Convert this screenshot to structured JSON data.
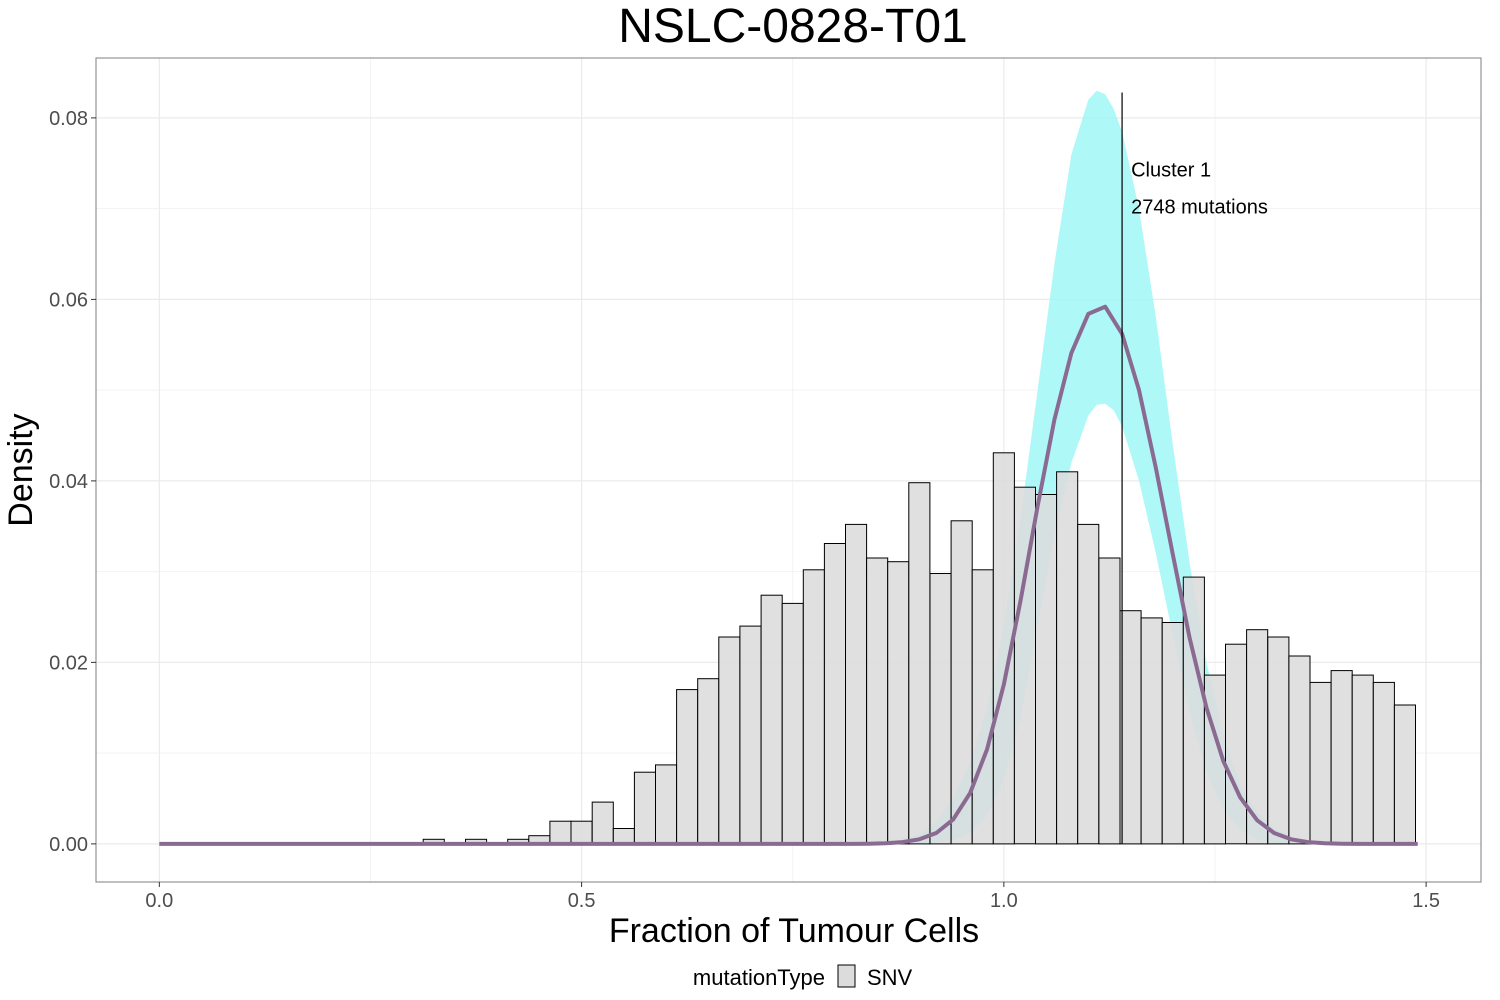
{
  "chart_data": {
    "type": "bar",
    "title": "NSLC-0828-T01",
    "xlabel": "Fraction of Tumour Cells",
    "ylabel": "Density",
    "xlim": [
      -0.075,
      1.565
    ],
    "ylim": [
      -0.0042,
      0.0866
    ],
    "x_ticks": [
      "0.0",
      "0.5",
      "1.0",
      "1.5"
    ],
    "y_ticks": [
      "0.00",
      "0.02",
      "0.04",
      "0.06",
      "0.08"
    ],
    "grid": true,
    "legend_position": "bottom",
    "legend": {
      "title": "mutationType",
      "entries": [
        "SNV"
      ]
    },
    "histogram": {
      "bin_width": 0.025,
      "bins": [
        {
          "x_start": 0.3125,
          "value": 0.0005
        },
        {
          "x_start": 0.3375,
          "value": 0.0
        },
        {
          "x_start": 0.3625,
          "value": 0.0005
        },
        {
          "x_start": 0.3875,
          "value": 0.0
        },
        {
          "x_start": 0.4125,
          "value": 0.0005
        },
        {
          "x_start": 0.4375,
          "value": 0.0009
        },
        {
          "x_start": 0.4625,
          "value": 0.0025
        },
        {
          "x_start": 0.4875,
          "value": 0.0025
        },
        {
          "x_start": 0.5125,
          "value": 0.0046
        },
        {
          "x_start": 0.5375,
          "value": 0.0017
        },
        {
          "x_start": 0.5625,
          "value": 0.0079
        },
        {
          "x_start": 0.5875,
          "value": 0.0087
        },
        {
          "x_start": 0.6125,
          "value": 0.017
        },
        {
          "x_start": 0.6375,
          "value": 0.0182
        },
        {
          "x_start": 0.6625,
          "value": 0.0228
        },
        {
          "x_start": 0.6875,
          "value": 0.024
        },
        {
          "x_start": 0.7125,
          "value": 0.0274
        },
        {
          "x_start": 0.7375,
          "value": 0.0265
        },
        {
          "x_start": 0.7625,
          "value": 0.0302
        },
        {
          "x_start": 0.7875,
          "value": 0.0331
        },
        {
          "x_start": 0.8125,
          "value": 0.0352
        },
        {
          "x_start": 0.8375,
          "value": 0.0315
        },
        {
          "x_start": 0.8625,
          "value": 0.0311
        },
        {
          "x_start": 0.8875,
          "value": 0.0398
        },
        {
          "x_start": 0.9125,
          "value": 0.0298
        },
        {
          "x_start": 0.9375,
          "value": 0.0356
        },
        {
          "x_start": 0.9625,
          "value": 0.0302
        },
        {
          "x_start": 0.9875,
          "value": 0.0431
        },
        {
          "x_start": 1.0125,
          "value": 0.0393
        },
        {
          "x_start": 1.0375,
          "value": 0.0385
        },
        {
          "x_start": 1.0625,
          "value": 0.041
        },
        {
          "x_start": 1.0875,
          "value": 0.0352
        },
        {
          "x_start": 1.1125,
          "value": 0.0315
        },
        {
          "x_start": 1.1375,
          "value": 0.0257
        },
        {
          "x_start": 1.1625,
          "value": 0.0249
        },
        {
          "x_start": 1.1875,
          "value": 0.0244
        },
        {
          "x_start": 1.2125,
          "value": 0.0294
        },
        {
          "x_start": 1.2375,
          "value": 0.0186
        },
        {
          "x_start": 1.2625,
          "value": 0.022
        },
        {
          "x_start": 1.2875,
          "value": 0.0236
        },
        {
          "x_start": 1.3125,
          "value": 0.0228
        },
        {
          "x_start": 1.3375,
          "value": 0.0207
        },
        {
          "x_start": 1.3625,
          "value": 0.0178
        },
        {
          "x_start": 1.3875,
          "value": 0.0191
        },
        {
          "x_start": 1.4125,
          "value": 0.0186
        },
        {
          "x_start": 1.4375,
          "value": 0.0178
        },
        {
          "x_start": 1.4625,
          "value": 0.0153
        }
      ]
    },
    "density_curve": {
      "x": [
        0.0,
        0.8,
        0.82,
        0.84,
        0.86,
        0.88,
        0.9,
        0.92,
        0.94,
        0.96,
        0.98,
        1.0,
        1.02,
        1.04,
        1.06,
        1.08,
        1.1,
        1.12,
        1.14,
        1.16,
        1.18,
        1.2,
        1.22,
        1.24,
        1.26,
        1.28,
        1.3,
        1.32,
        1.34,
        1.36,
        1.38,
        1.4,
        1.42,
        1.44,
        1.46,
        1.49
      ],
      "y": [
        0.0,
        0.0,
        0.0,
        2e-05,
        7e-05,
        0.0002,
        0.0005,
        0.0012,
        0.0027,
        0.0056,
        0.0104,
        0.0176,
        0.0269,
        0.0372,
        0.0468,
        0.0541,
        0.0584,
        0.0592,
        0.0562,
        0.05,
        0.0414,
        0.0319,
        0.0227,
        0.015,
        0.0091,
        0.0051,
        0.0026,
        0.0012,
        0.0005,
        0.0002,
        7e-05,
        2e-05,
        0.0,
        0.0,
        0.0,
        0.0
      ],
      "color": "#8b6a91"
    },
    "confidence_band": {
      "x": [
        0.86,
        0.9,
        0.92,
        0.94,
        0.96,
        0.98,
        1.0,
        1.02,
        1.04,
        1.06,
        1.08,
        1.1,
        1.11,
        1.12,
        1.13,
        1.14,
        1.16,
        1.18,
        1.2,
        1.22,
        1.24,
        1.26,
        1.28,
        1.3,
        1.32,
        1.34,
        1.36,
        1.38,
        1.4,
        1.43
      ],
      "lower": [
        0.0,
        0.0,
        0.0001,
        0.0004,
        0.0012,
        0.0031,
        0.0071,
        0.014,
        0.024,
        0.034,
        0.042,
        0.0472,
        0.0484,
        0.0485,
        0.0478,
        0.046,
        0.04,
        0.032,
        0.023,
        0.0145,
        0.008,
        0.0038,
        0.0015,
        0.0005,
        0.0001,
        0.0,
        0.0,
        0.0,
        0.0,
        0.0
      ],
      "upper": [
        0.0,
        0.001,
        0.0025,
        0.005,
        0.009,
        0.015,
        0.024,
        0.036,
        0.05,
        0.064,
        0.076,
        0.082,
        0.083,
        0.0826,
        0.081,
        0.0785,
        0.07,
        0.058,
        0.044,
        0.031,
        0.02,
        0.012,
        0.0065,
        0.0035,
        0.0018,
        0.0008,
        0.0003,
        0.0001,
        0.0,
        0.0
      ],
      "color": "#a1f7f7"
    },
    "annotation": {
      "x": 1.14,
      "line_top": 0.0828,
      "lines": [
        "Cluster 1",
        "2748 mutations"
      ]
    },
    "bar_fill": "#dcdcdc",
    "bar_stroke": "#000000",
    "grid_color": "#ebebeb"
  }
}
